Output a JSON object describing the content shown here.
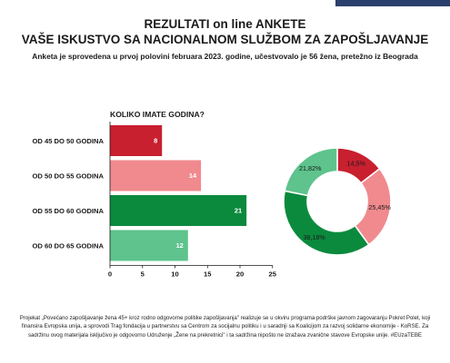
{
  "header": {
    "title_line1": "REZULTATI on line ANKETE",
    "title_line2": "VAŠE ISKUSTVO SA NACIONALNOM SLUŽBOM ZA ZAPOŠLJAVANJE",
    "subtitle": "Anketa je sprovedena u prvoj polovini februara 2023. godine, učestvovalo je 56 žena, pretežno iz Beograda"
  },
  "chart_data": [
    {
      "type": "bar",
      "orientation": "horizontal",
      "title": "KOLIKO IMATE GODINA?",
      "categories": [
        "OD 45 DO 50 GODINA",
        "OD 50 DO 55 GODINA",
        "OD 55 DO 60 GODINA",
        "OD 60 DO 65 GODINA"
      ],
      "values": [
        8,
        14,
        21,
        12
      ],
      "colors": [
        "#c8202f",
        "#f08a8e",
        "#0b8a3e",
        "#5ec38c"
      ],
      "xlim": [
        0,
        25
      ],
      "xticks": [
        0,
        5,
        10,
        15,
        20,
        25
      ],
      "grid": false
    },
    {
      "type": "pie",
      "donut": true,
      "labels": [
        "14,5%",
        "25,45%",
        "38,18%",
        "21,82%"
      ],
      "values": [
        14.5,
        25.45,
        38.18,
        21.82
      ],
      "colors": [
        "#c8202f",
        "#f08a8e",
        "#0b8a3e",
        "#5ec38c"
      ]
    }
  ],
  "footer": {
    "text": "Projekat „Povećano zapošljavanje žena 45+ kroz rodno odgovorne politike zapošljavanja\" realizuje se u okviru programa podrške javnom zagovaranju Pokret Polet, koji finansira Evropska unija, a sprovodi Trag fondacija u partnerstvu sa Centrom za socijalnu politiku i u saradnji sa Koalicijom za razvoj solidarne ekonomije - KoRSE. Za sadržinu ovog materijala isključivo je odgovorno Udruženje „Žene na prekretnici\" i ta sadržina nipošto ne izražava zvanične stavove Evropske unije. #EUzaTEBE"
  },
  "colors": {
    "header_strip": "#2a3f6b"
  }
}
